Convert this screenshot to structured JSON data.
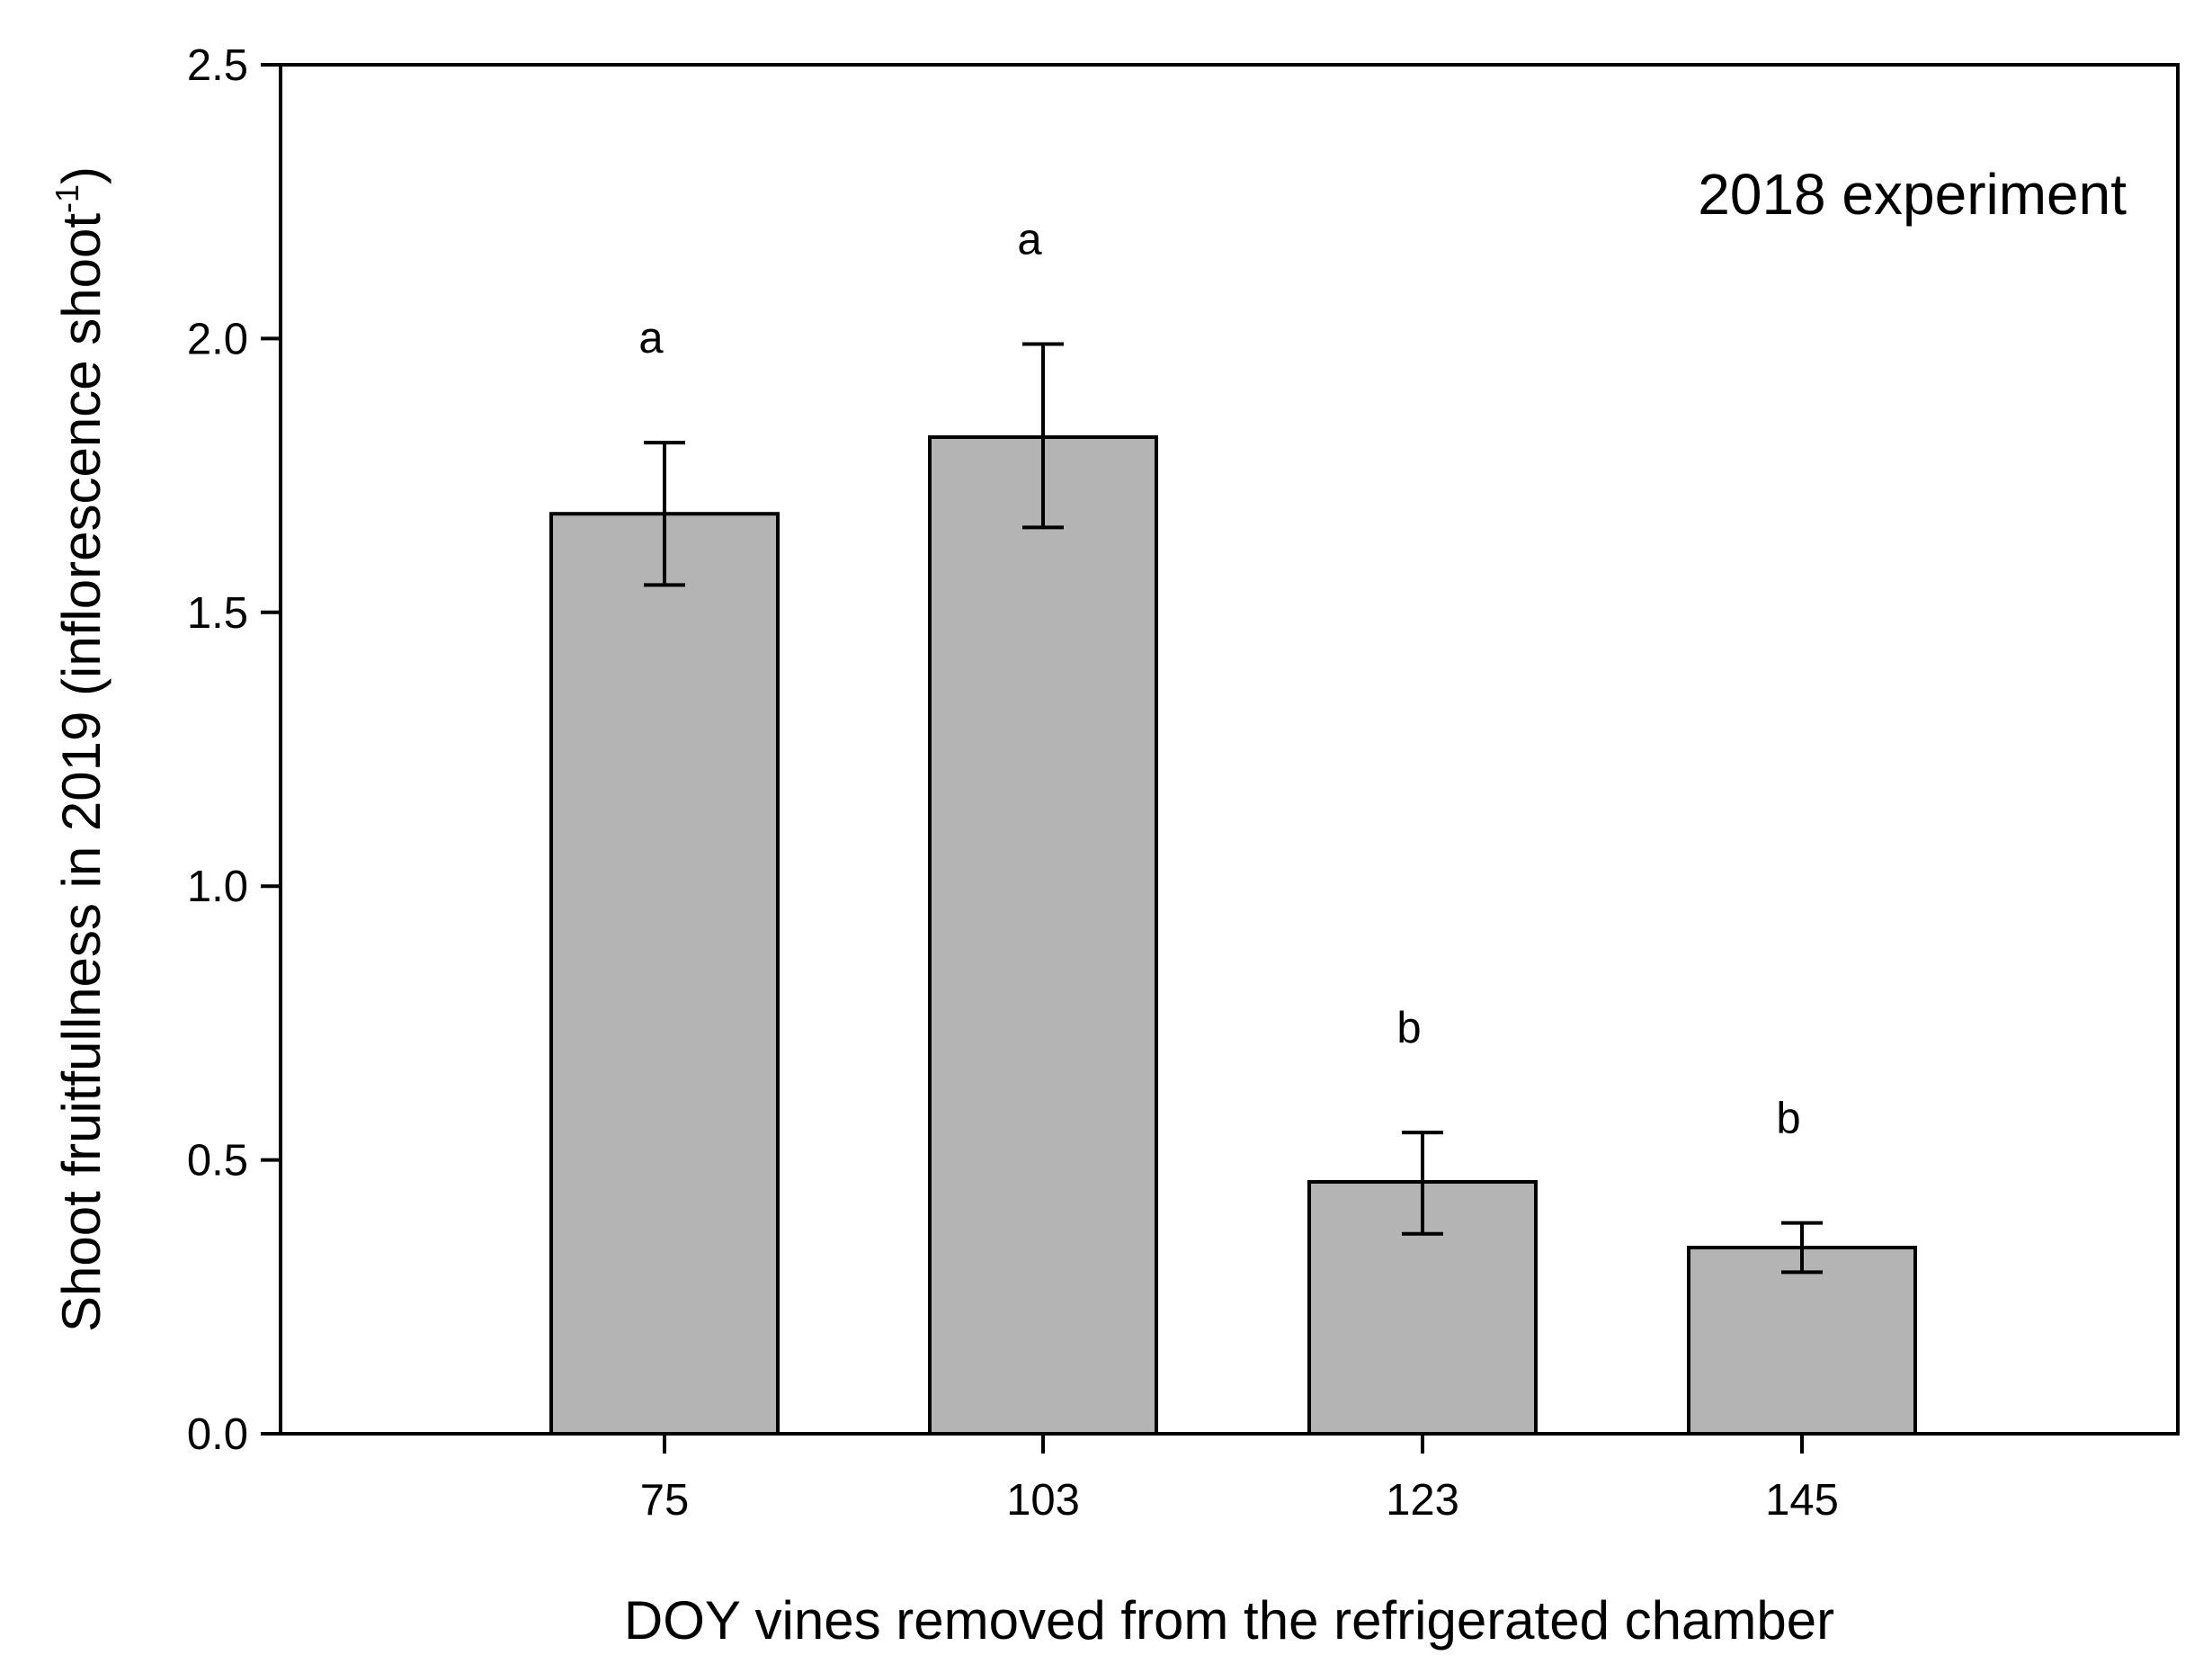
{
  "chart_data": {
    "type": "bar",
    "title": "",
    "annotation": "2018 experiment",
    "xlabel": "DOY vines removed from the refrigerated chamber",
    "ylabel_main": "Shoot fruitfullness in 2019 (inflorescence shoot",
    "ylabel_superscript": "-1",
    "ylabel_close": ")",
    "categories": [
      "75",
      "103",
      "123",
      "145"
    ],
    "values": [
      1.68,
      1.82,
      0.46,
      0.34
    ],
    "error_plus": [
      0.13,
      0.17,
      0.09,
      0.045
    ],
    "error_minus": [
      0.13,
      0.165,
      0.095,
      0.045
    ],
    "significance_letters": [
      "a",
      "a",
      "b",
      "b"
    ],
    "ylim": [
      0,
      2.5
    ],
    "yticks": [
      0.0,
      0.5,
      1.0,
      1.5,
      2.0,
      2.5
    ],
    "ytick_labels": [
      "0.0",
      "0.5",
      "1.0",
      "1.5",
      "2.0",
      "2.5"
    ],
    "grid": false,
    "bar_color": "#b4b4b4",
    "edge_color": "#000000"
  }
}
